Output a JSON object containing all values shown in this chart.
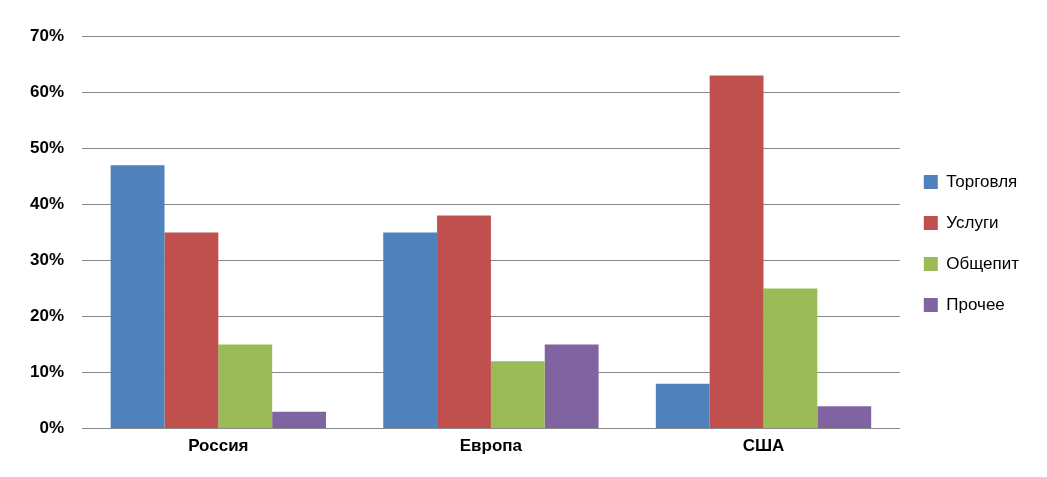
{
  "chart_data": {
    "type": "bar",
    "categories": [
      "Россия",
      "Европа",
      "США"
    ],
    "series": [
      {
        "name": "Торговля",
        "color": "#4f81bd",
        "values": [
          47,
          35,
          8
        ]
      },
      {
        "name": "Услуги",
        "color": "#c0504d",
        "values": [
          35,
          38,
          63
        ]
      },
      {
        "name": "Общепит",
        "color": "#9bbb59",
        "values": [
          15,
          12,
          25
        ]
      },
      {
        "name": "Прочее",
        "color": "#8064a2",
        "values": [
          3,
          15,
          4
        ]
      }
    ],
    "ylim": [
      0,
      70
    ],
    "yticks": [
      {
        "value": 0,
        "label": "0%"
      },
      {
        "value": 10,
        "label": "10%"
      },
      {
        "value": 20,
        "label": "20%"
      },
      {
        "value": 30,
        "label": "30%"
      },
      {
        "value": 40,
        "label": "40%"
      },
      {
        "value": 50,
        "label": "50%"
      },
      {
        "value": 60,
        "label": "60%"
      },
      {
        "value": 70,
        "label": "70%"
      }
    ],
    "grid": "y",
    "legend": "right"
  }
}
